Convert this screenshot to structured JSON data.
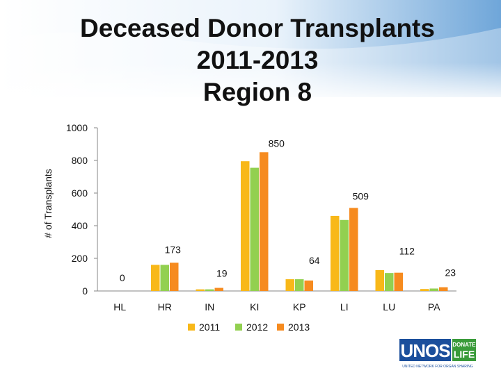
{
  "slide": {
    "title_lines": [
      "Deceased Donor Transplants",
      "2011-2013",
      "Region 8"
    ]
  },
  "logo": {
    "name": "UNOS",
    "tag_line1": "DONATE",
    "tag_line2": "LIFE",
    "subtitle": "UNITED NETWORK FOR ORGAN SHARING"
  },
  "chart_data": {
    "type": "bar",
    "title": "",
    "xlabel": "",
    "ylabel": "# of Transplants",
    "ylim": [
      0,
      1000
    ],
    "yticks": [
      0,
      200,
      400,
      600,
      800,
      1000
    ],
    "grid": false,
    "legend_position": "bottom",
    "categories": [
      "HL",
      "HR",
      "IN",
      "KI",
      "KP",
      "LI",
      "LU",
      "PA"
    ],
    "series": [
      {
        "name": "2011",
        "color": "#F8B819",
        "values": [
          0,
          160,
          10,
          795,
          72,
          460,
          128,
          12
        ]
      },
      {
        "name": "2012",
        "color": "#92D050",
        "values": [
          0,
          160,
          10,
          755,
          72,
          435,
          110,
          15
        ]
      },
      {
        "name": "2013",
        "color": "#F68B1F",
        "values": [
          0,
          173,
          19,
          850,
          64,
          509,
          112,
          23
        ]
      }
    ],
    "data_labels": [
      {
        "category": "HL",
        "series": "2013",
        "text": "0"
      },
      {
        "category": "HR",
        "series": "2013",
        "text": "173"
      },
      {
        "category": "IN",
        "series": "2013",
        "text": "19"
      },
      {
        "category": "KI",
        "series": "2013",
        "text": "850"
      },
      {
        "category": "KP",
        "series": "2013",
        "text": "64"
      },
      {
        "category": "LI",
        "series": "2013",
        "text": "509"
      },
      {
        "category": "LU",
        "series": "2013",
        "text": "112"
      },
      {
        "category": "PA",
        "series": "2013",
        "text": "23"
      }
    ]
  }
}
